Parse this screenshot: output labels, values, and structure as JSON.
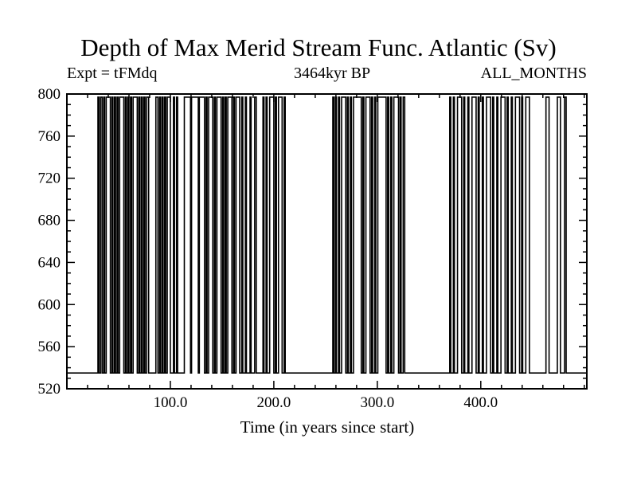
{
  "chart_data": {
    "type": "line",
    "line_style": "square-wave-step",
    "title": "Depth of Max Merid Stream Func. Atlantic (Sv)",
    "subtitle_left": "Expt = tFMdq",
    "subtitle_center": "3464kyr BP",
    "subtitle_right": "ALL_MONTHS",
    "xlabel": "Time (in years since start)",
    "ylabel": "",
    "xlim": [
      0,
      502.5
    ],
    "ylim": [
      520,
      800
    ],
    "x_major_ticks": [
      100,
      200,
      300,
      400
    ],
    "x_major_labels": [
      "100.0",
      "200.0",
      "300.0",
      "400.0"
    ],
    "x_minor_step": 20,
    "y_major_ticks": [
      520,
      560,
      600,
      640,
      680,
      720,
      760,
      800
    ],
    "y_major_labels": [
      "520",
      "560",
      "600",
      "640",
      "680",
      "720",
      "760",
      "800"
    ],
    "y_minor_step": 10,
    "grid": "off",
    "legend": "none",
    "colors": {
      "line": "#000000",
      "frame": "#000000",
      "background": "#ffffff"
    },
    "low_level": 535,
    "high_level": 797,
    "high_intervals": [
      [
        30,
        31
      ],
      [
        32.5,
        34
      ],
      [
        35.5,
        36.5
      ],
      [
        38,
        42
      ],
      [
        43.5,
        44.5
      ],
      [
        46,
        47
      ],
      [
        48.5,
        49.5
      ],
      [
        51,
        55
      ],
      [
        56.5,
        57.5
      ],
      [
        59,
        60
      ],
      [
        61.5,
        62.5
      ],
      [
        64,
        68
      ],
      [
        69.5,
        70.5
      ],
      [
        72,
        73
      ],
      [
        74.5,
        75.5
      ],
      [
        77,
        79
      ],
      [
        86,
        88
      ],
      [
        89.5,
        90.5
      ],
      [
        92,
        93
      ],
      [
        94.5,
        95.5
      ],
      [
        97,
        100
      ],
      [
        103,
        104
      ],
      [
        106,
        107
      ],
      [
        113.5,
        119.5
      ],
      [
        120.5,
        127
      ],
      [
        128,
        133
      ],
      [
        134.5,
        135.5
      ],
      [
        137,
        141
      ],
      [
        142.5,
        143.5
      ],
      [
        145,
        149
      ],
      [
        150.5,
        151.5
      ],
      [
        153,
        154
      ],
      [
        155.5,
        159.5
      ],
      [
        161,
        162
      ],
      [
        163.5,
        167
      ],
      [
        169,
        170
      ],
      [
        172.5,
        173.5
      ],
      [
        177,
        178
      ],
      [
        181.5,
        183
      ],
      [
        189.5,
        190.5
      ],
      [
        192.5,
        193.5
      ],
      [
        196,
        200
      ],
      [
        201.5,
        202.5
      ],
      [
        204.5,
        208
      ],
      [
        210,
        211
      ],
      [
        257,
        258
      ],
      [
        259.5,
        260.5
      ],
      [
        262.5,
        263.5
      ],
      [
        265.5,
        269.5
      ],
      [
        271,
        272
      ],
      [
        274,
        275
      ],
      [
        277,
        284.5
      ],
      [
        286,
        287
      ],
      [
        289,
        293
      ],
      [
        294.5,
        295.5
      ],
      [
        297.5,
        298.5
      ],
      [
        300.5,
        308.5
      ],
      [
        310,
        311
      ],
      [
        313,
        314
      ],
      [
        316,
        320.5
      ],
      [
        322,
        323
      ],
      [
        325,
        326.5
      ],
      [
        370,
        371
      ],
      [
        373.5,
        374.5
      ],
      [
        377.5,
        381.5
      ],
      [
        383.5,
        384.5
      ],
      [
        387.5,
        388.5
      ],
      [
        391.5,
        395.5
      ],
      [
        397.5,
        398.5
      ],
      [
        401.5,
        402.5
      ],
      [
        405.5,
        409.5
      ],
      [
        411.5,
        412.5
      ],
      [
        415.5,
        416.5
      ],
      [
        419.5,
        423.5
      ],
      [
        425.5,
        426.5
      ],
      [
        429.5,
        430.5
      ],
      [
        433.5,
        437.5
      ],
      [
        439.5,
        440.5
      ],
      [
        443.5,
        447
      ],
      [
        463,
        466
      ],
      [
        474,
        477
      ],
      [
        481,
        482.5
      ]
    ]
  }
}
